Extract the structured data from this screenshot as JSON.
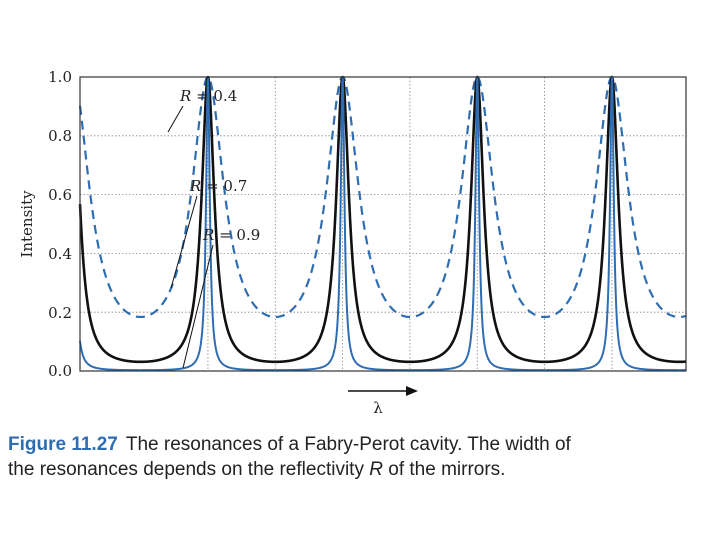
{
  "chart_data": {
    "type": "line",
    "title": "",
    "xlabel": "λ",
    "ylabel": "Intensity",
    "ylim": [
      0,
      1.0
    ],
    "xlim": [
      -0.95,
      3.55
    ],
    "yticks": [
      "0.0",
      "0.2",
      "0.4",
      "0.6",
      "0.8",
      "1.0"
    ],
    "grid": true,
    "x_arrow": true,
    "peak_positions": [
      0,
      1,
      2,
      3
    ],
    "series": [
      {
        "name": "R = 0.4",
        "reflectivity": 0.4,
        "style": "dashed",
        "color": "#2f6db3",
        "min_intensity": 0.13,
        "max_intensity": 1.0
      },
      {
        "name": "R = 0.7",
        "reflectivity": 0.7,
        "style": "solid",
        "color": "#111111",
        "min_intensity": 0.03,
        "max_intensity": 1.0
      },
      {
        "name": "R = 0.9",
        "reflectivity": 0.9,
        "style": "solid",
        "color": "#2f6db3",
        "min_intensity": 0.003,
        "max_intensity": 1.0
      }
    ],
    "annotations": [
      {
        "var": "R",
        "text": "= 0.4"
      },
      {
        "var": "R",
        "text": "= 0.7"
      },
      {
        "var": "R",
        "text": "= 0.9"
      }
    ]
  },
  "caption": {
    "figure_number": "Figure 11.27",
    "line1": "The resonances of a Fabry-Perot cavity. The width of",
    "line2_before": "the resonances depends on the reflectivity ",
    "line2_var": "R",
    "line2_after": " of the mirrors."
  }
}
